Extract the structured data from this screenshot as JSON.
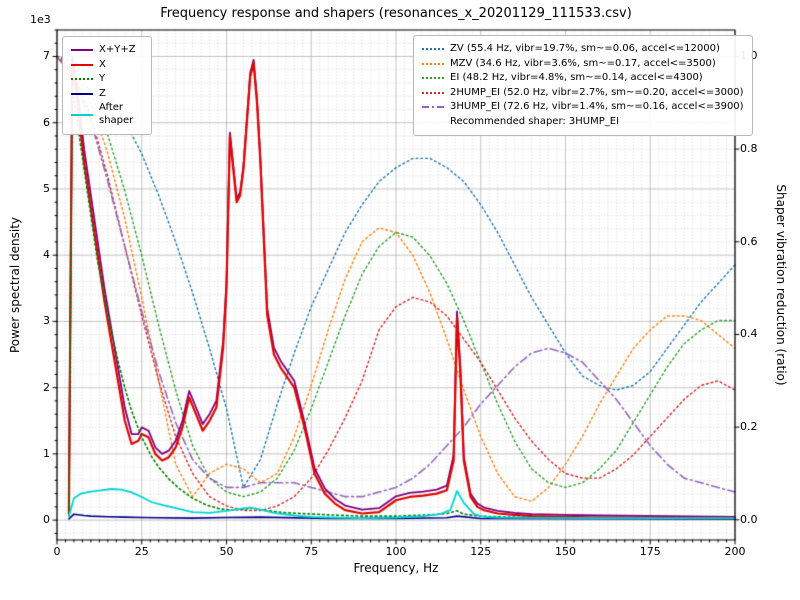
{
  "title": "Frequency response and shapers (resonances_x_20201129_111533.csv)",
  "axes": {
    "xlabel": "Frequency, Hz",
    "ylabel_left": "Power spectral density",
    "ylabel_right": "Shaper vibration reduction (ratio)",
    "offset_text": "1e3",
    "x_ticks": [
      0,
      25,
      50,
      75,
      100,
      125,
      150,
      175,
      200
    ],
    "y_left_ticks": [
      0,
      1,
      2,
      3,
      4,
      5,
      6,
      7
    ],
    "y_right_ticks": [
      "0.0",
      "0.2",
      "0.4",
      "0.6",
      "0.8",
      "1.0"
    ]
  },
  "legend_psd": {
    "items": [
      {
        "label": "X+Y+Z",
        "color": "#800080",
        "dash": "solid"
      },
      {
        "label": "X",
        "color": "#e10600",
        "dash": "solid"
      },
      {
        "label": "Y",
        "color": "#007f00",
        "dash": "dotted"
      },
      {
        "label": "Z",
        "color": "#00008b",
        "dash": "solid"
      },
      {
        "label": "After shaper",
        "color": "#00d5d5",
        "dash": "solid"
      }
    ]
  },
  "legend_shapers": {
    "items": [
      {
        "label": "ZV (55.4 Hz, vibr=19.7%, sm~=0.06, accel<=12000)",
        "color": "#1f77b4",
        "dash": "dotted"
      },
      {
        "label": "MZV (34.6 Hz, vibr=3.6%, sm~=0.17, accel<=3500)",
        "color": "#ff7f0e",
        "dash": "dotted"
      },
      {
        "label": "EI (48.2 Hz, vibr=4.8%, sm~=0.14, accel<=4300)",
        "color": "#2ca02c",
        "dash": "dotted"
      },
      {
        "label": "2HUMP_EI (52.0 Hz, vibr=2.7%, sm~=0.20, accel<=3000)",
        "color": "#d62728",
        "dash": "dotted"
      },
      {
        "label": "3HUMP_EI (72.6 Hz, vibr=1.4%, sm~=0.16, accel<=3900)",
        "color": "#9467bd",
        "dash": "dashdot"
      },
      {
        "label": "Recommended shaper: 3HUMP_EI",
        "color": null,
        "dash": "none"
      }
    ]
  },
  "chart_data": {
    "type": "line",
    "xlim": [
      0,
      200
    ],
    "ylim_left": [
      -300,
      7400
    ],
    "ylim_right": [
      -0.0435,
      1.057
    ],
    "grid": "major+minor",
    "x_minor_step": 2.5,
    "y_minor_step_left": 200,
    "shaper_x": [
      0,
      5,
      10,
      15,
      20,
      25,
      30,
      35,
      40,
      45,
      50,
      55,
      60,
      65,
      70,
      75,
      80,
      85,
      90,
      95,
      100,
      105,
      110,
      115,
      120,
      125,
      130,
      135,
      140,
      145,
      150,
      155,
      160,
      165,
      170,
      175,
      180,
      185,
      190,
      195,
      200
    ],
    "series": [
      {
        "name": "ZV",
        "axis": "right",
        "color": "#1f77b4",
        "dash": "dotted",
        "width": 1.4,
        "y": [
          1.0,
          0.99,
          0.96,
          0.92,
          0.86,
          0.79,
          0.7,
          0.6,
          0.49,
          0.37,
          0.24,
          0.07,
          0.13,
          0.25,
          0.36,
          0.46,
          0.54,
          0.62,
          0.68,
          0.73,
          0.76,
          0.78,
          0.78,
          0.76,
          0.73,
          0.68,
          0.62,
          0.55,
          0.48,
          0.42,
          0.36,
          0.31,
          0.29,
          0.28,
          0.29,
          0.32,
          0.37,
          0.42,
          0.47,
          0.51,
          0.55
        ]
      },
      {
        "name": "MZV",
        "axis": "right",
        "color": "#ff7f0e",
        "dash": "dotted",
        "width": 1.4,
        "y": [
          1.0,
          0.97,
          0.9,
          0.79,
          0.65,
          0.48,
          0.3,
          0.12,
          0.05,
          0.1,
          0.12,
          0.11,
          0.08,
          0.1,
          0.18,
          0.29,
          0.41,
          0.52,
          0.6,
          0.63,
          0.62,
          0.57,
          0.49,
          0.39,
          0.28,
          0.18,
          0.1,
          0.05,
          0.04,
          0.07,
          0.12,
          0.18,
          0.25,
          0.31,
          0.37,
          0.41,
          0.44,
          0.44,
          0.43,
          0.4,
          0.37
        ]
      },
      {
        "name": "EI",
        "axis": "right",
        "color": "#2ca02c",
        "dash": "dotted",
        "width": 1.4,
        "y": [
          1.0,
          0.98,
          0.92,
          0.83,
          0.71,
          0.57,
          0.42,
          0.28,
          0.16,
          0.09,
          0.06,
          0.05,
          0.06,
          0.09,
          0.15,
          0.24,
          0.34,
          0.44,
          0.53,
          0.59,
          0.62,
          0.61,
          0.57,
          0.51,
          0.43,
          0.34,
          0.25,
          0.17,
          0.11,
          0.08,
          0.07,
          0.08,
          0.11,
          0.15,
          0.21,
          0.27,
          0.33,
          0.38,
          0.41,
          0.43,
          0.43
        ]
      },
      {
        "name": "2HUMP_EI",
        "axis": "right",
        "color": "#d62728",
        "dash": "dotted",
        "width": 1.4,
        "y": [
          1.0,
          0.96,
          0.87,
          0.74,
          0.59,
          0.44,
          0.3,
          0.18,
          0.1,
          0.05,
          0.03,
          0.02,
          0.02,
          0.03,
          0.05,
          0.09,
          0.15,
          0.22,
          0.3,
          0.41,
          0.46,
          0.48,
          0.47,
          0.44,
          0.39,
          0.34,
          0.28,
          0.22,
          0.17,
          0.13,
          0.1,
          0.09,
          0.09,
          0.11,
          0.14,
          0.18,
          0.22,
          0.26,
          0.29,
          0.3,
          0.28
        ]
      },
      {
        "name": "3HUMP_EI",
        "axis": "right",
        "color": "#9467bd",
        "dash": "dashdot",
        "width": 1.6,
        "y": [
          1.0,
          0.95,
          0.86,
          0.73,
          0.59,
          0.45,
          0.32,
          0.21,
          0.13,
          0.09,
          0.07,
          0.07,
          0.08,
          0.08,
          0.08,
          0.07,
          0.06,
          0.05,
          0.05,
          0.06,
          0.07,
          0.09,
          0.12,
          0.16,
          0.2,
          0.25,
          0.29,
          0.33,
          0.36,
          0.37,
          0.36,
          0.34,
          0.3,
          0.26,
          0.21,
          0.16,
          0.12,
          0.09,
          0.08,
          0.07,
          0.06
        ]
      },
      {
        "name": "Z",
        "axis": "left",
        "color": "#00008b",
        "dash": "solid",
        "width": 1.6,
        "x": [
          3.5,
          5,
          8,
          10,
          15,
          20,
          25,
          30,
          40,
          50,
          60,
          80,
          100,
          115,
          118,
          125,
          150,
          200
        ],
        "y": [
          20,
          90,
          70,
          60,
          50,
          45,
          40,
          35,
          30,
          40,
          45,
          25,
          25,
          35,
          60,
          25,
          20,
          18
        ]
      },
      {
        "name": "X+Y+Z",
        "axis": "left",
        "color": "#800080",
        "dash": "solid",
        "width": 1.8,
        "x": [
          3.5,
          4.5,
          6,
          8,
          10,
          12,
          14,
          16,
          18,
          20,
          22,
          24,
          25,
          27,
          29,
          31,
          33,
          35,
          37,
          39,
          41,
          43,
          45,
          47,
          49,
          50,
          51,
          52,
          53,
          54,
          55,
          56,
          57,
          58,
          59,
          60,
          62,
          64,
          66,
          68,
          70,
          73,
          76,
          79,
          82,
          85,
          90,
          95,
          100,
          104,
          108,
          112,
          115,
          117,
          118,
          119,
          120,
          122,
          124,
          126,
          130,
          135,
          140,
          150,
          160,
          180,
          200
        ],
        "y": [
          150,
          7000,
          6500,
          5600,
          4900,
          4200,
          3500,
          2900,
          2300,
          1700,
          1300,
          1300,
          1400,
          1350,
          1100,
          1000,
          1050,
          1200,
          1500,
          1950,
          1700,
          1450,
          1600,
          1800,
          2700,
          3600,
          5850,
          5350,
          4850,
          4950,
          5350,
          6050,
          6750,
          6950,
          6350,
          5450,
          3200,
          2600,
          2400,
          2250,
          2100,
          1480,
          780,
          480,
          320,
          220,
          160,
          180,
          360,
          410,
          430,
          460,
          520,
          980,
          3150,
          2300,
          960,
          400,
          250,
          190,
          140,
          110,
          90,
          80,
          70,
          60,
          50
        ]
      },
      {
        "name": "X",
        "axis": "left",
        "color": "#e10600",
        "dash": "solid",
        "width": 2.2,
        "x": [
          3.5,
          4.5,
          6,
          8,
          10,
          12,
          14,
          16,
          18,
          20,
          22,
          24,
          25,
          27,
          29,
          31,
          33,
          35,
          37,
          39,
          41,
          43,
          45,
          47,
          49,
          50,
          51,
          52,
          53,
          54,
          55,
          56,
          57,
          58,
          59,
          60,
          62,
          64,
          66,
          68,
          70,
          73,
          76,
          79,
          82,
          85,
          90,
          95,
          100,
          104,
          108,
          112,
          115,
          117,
          118,
          119,
          120,
          122,
          124,
          126,
          130,
          135,
          140,
          150,
          160,
          180,
          200
        ],
        "y": [
          100,
          6900,
          6300,
          5400,
          4700,
          4000,
          3300,
          2700,
          2100,
          1500,
          1150,
          1200,
          1300,
          1250,
          1000,
          900,
          950,
          1100,
          1400,
          1850,
          1600,
          1350,
          1500,
          1700,
          2600,
          3500,
          5800,
          5300,
          4800,
          4900,
          5300,
          6000,
          6700,
          6900,
          6300,
          5400,
          3100,
          2500,
          2300,
          2150,
          2000,
          1400,
          700,
          400,
          250,
          150,
          100,
          120,
          300,
          350,
          370,
          400,
          450,
          900,
          3050,
          2200,
          900,
          350,
          200,
          150,
          100,
          80,
          60,
          50,
          40,
          35,
          30
        ]
      },
      {
        "name": "Y",
        "axis": "left",
        "color": "#007f00",
        "dash": "dotted",
        "width": 1.6,
        "x": [
          3.5,
          4.5,
          6,
          8,
          10,
          12,
          15,
          18,
          20,
          22,
          25,
          28,
          30,
          33,
          36,
          40,
          44,
          48,
          52,
          56,
          58,
          60,
          64,
          68,
          72,
          76,
          80,
          90,
          100,
          110,
          115,
          118,
          120,
          125,
          130,
          140,
          160,
          180,
          200
        ],
        "y": [
          80,
          6500,
          6000,
          5300,
          4600,
          3900,
          3100,
          2400,
          2000,
          1650,
          1250,
          950,
          800,
          620,
          480,
          330,
          230,
          170,
          150,
          170,
          180,
          160,
          130,
          110,
          100,
          90,
          80,
          60,
          60,
          80,
          100,
          140,
          90,
          60,
          50,
          40,
          35,
          30,
          25
        ]
      },
      {
        "name": "After shaper",
        "axis": "left",
        "color": "#00d5d5",
        "dash": "solid",
        "width": 1.8,
        "x": [
          3.5,
          5,
          7,
          10,
          13,
          16,
          19,
          22,
          25,
          28,
          31,
          35,
          40,
          45,
          50,
          54,
          57,
          60,
          64,
          70,
          75,
          80,
          90,
          100,
          108,
          113,
          116,
          118,
          120,
          123,
          126,
          130,
          140,
          160,
          180,
          200
        ],
        "y": [
          60,
          330,
          400,
          430,
          450,
          470,
          460,
          420,
          350,
          270,
          230,
          180,
          120,
          110,
          140,
          170,
          190,
          160,
          110,
          70,
          50,
          40,
          30,
          40,
          60,
          90,
          150,
          440,
          260,
          90,
          50,
          40,
          35,
          30,
          30,
          30
        ]
      }
    ]
  }
}
